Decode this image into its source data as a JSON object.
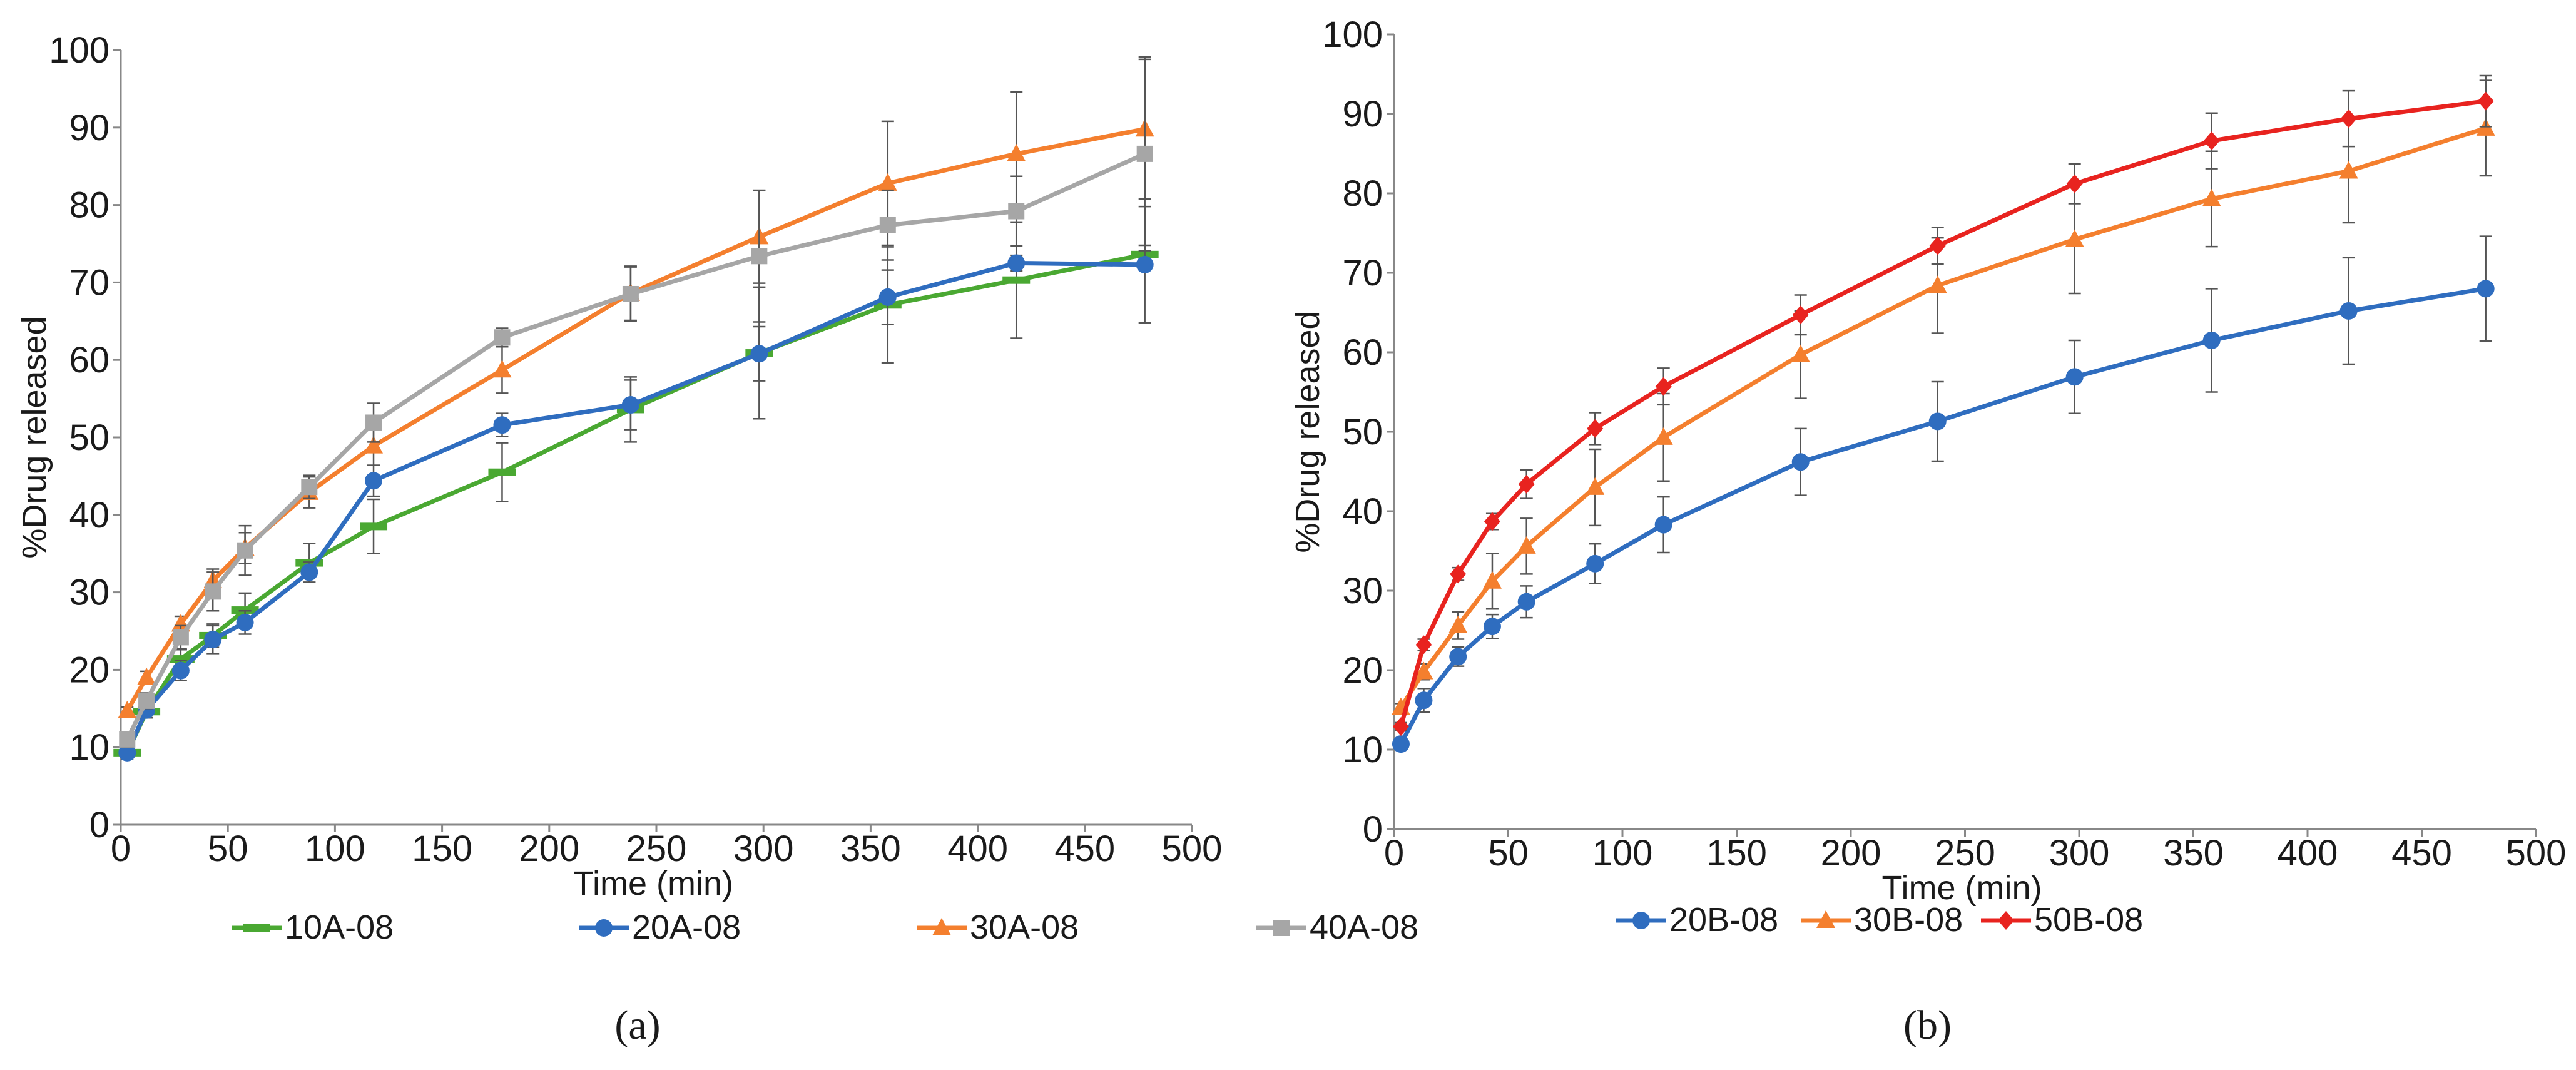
{
  "chart_data": [
    {
      "type": "line",
      "panel_label": "(a)",
      "xlabel": "Time (min)",
      "ylabel": "%Drug released",
      "xlim": [
        0,
        500
      ],
      "ylim": [
        0,
        100
      ],
      "x_ticks": [
        "0",
        "50",
        "100",
        "150",
        "200",
        "250",
        "300",
        "350",
        "400",
        "450",
        "500"
      ],
      "y_ticks": [
        "0",
        "10",
        "20",
        "30",
        "40",
        "50",
        "60",
        "70",
        "80",
        "90",
        "100"
      ],
      "grid": false,
      "legend_position": "bottom",
      "x": [
        3,
        12,
        28,
        43,
        58,
        88,
        118,
        178,
        238,
        298,
        358,
        418,
        478
      ],
      "series": [
        {
          "name": "10A-08",
          "color": "#4aa832",
          "marker": "dash",
          "values": [
            9.3,
            14.6,
            21.4,
            24.4,
            27.7,
            33.8,
            38.5,
            45.5,
            53.6,
            60.9,
            67.1,
            70.3,
            73.6
          ],
          "errors": [
            0.6,
            0.8,
            1.2,
            1.5,
            2.2,
            2.5,
            3.5,
            3.8,
            4.2,
            8.5,
            7.5,
            7.5,
            1.2
          ]
        },
        {
          "name": "20A-08",
          "color": "#2f6dbf",
          "marker": "circle",
          "values": [
            9.3,
            14.8,
            19.9,
            23.9,
            26.1,
            32.6,
            44.4,
            51.6,
            54.2,
            60.8,
            68.1,
            72.5,
            72.3
          ],
          "errors": [
            0.8,
            1.0,
            1.3,
            1.8,
            1.5,
            1.3,
            2.0,
            1.5,
            3.2,
            3.5,
            3.5,
            1.0,
            7.5
          ]
        },
        {
          "name": "30A-08",
          "color": "#f47f2e",
          "marker": "triangle",
          "values": [
            14.7,
            19.0,
            25.9,
            31.5,
            35.7,
            42.9,
            48.9,
            58.7,
            68.6,
            75.9,
            82.8,
            86.6,
            89.8
          ],
          "errors": [
            0.5,
            0.8,
            1.0,
            1.5,
            2.0,
            2.0,
            2.5,
            3.0,
            3.5,
            6.0,
            8.0,
            8.0,
            9.0
          ]
        },
        {
          "name": "40A-08",
          "color": "#a6a6a6",
          "marker": "square",
          "values": [
            11.0,
            16.0,
            24.2,
            30.1,
            35.4,
            43.6,
            51.9,
            62.9,
            68.5,
            73.4,
            77.4,
            79.2,
            86.6
          ],
          "errors": [
            1.0,
            1.0,
            1.5,
            2.5,
            3.2,
            1.5,
            2.5,
            1.2,
            3.5,
            8.5,
            4.5,
            4.5,
            12.5
          ]
        }
      ]
    },
    {
      "type": "line",
      "panel_label": "(b)",
      "xlabel": "Time (min)",
      "ylabel": "%Drug released",
      "xlim": [
        0,
        500
      ],
      "ylim": [
        0,
        100
      ],
      "x_ticks": [
        "0",
        "50",
        "100",
        "150",
        "200",
        "250",
        "300",
        "350",
        "400",
        "450",
        "500"
      ],
      "y_ticks": [
        "0",
        "10",
        "20",
        "30",
        "40",
        "50",
        "60",
        "70",
        "80",
        "90",
        "100"
      ],
      "grid": false,
      "legend_position": "bottom",
      "x": [
        3,
        13,
        28,
        43,
        58,
        88,
        118,
        178,
        238,
        298,
        358,
        418,
        478
      ],
      "series": [
        {
          "name": "20B-08",
          "color": "#2f6dbf",
          "marker": "circle",
          "values": [
            10.7,
            16.2,
            21.7,
            25.5,
            28.6,
            33.4,
            38.3,
            46.2,
            51.3,
            56.9,
            61.5,
            65.2,
            68.0
          ],
          "errors": [
            0.5,
            1.5,
            1.2,
            1.5,
            2.0,
            2.5,
            3.5,
            4.2,
            5.0,
            4.6,
            6.5,
            6.7,
            6.6
          ]
        },
        {
          "name": "30B-08",
          "color": "#f47f2e",
          "marker": "triangle",
          "values": [
            15.3,
            19.8,
            25.6,
            31.2,
            35.6,
            43.0,
            49.3,
            59.7,
            68.4,
            74.2,
            79.3,
            82.8,
            88.2
          ],
          "errors": [
            0.5,
            1.0,
            1.7,
            3.5,
            3.5,
            4.8,
            5.5,
            5.5,
            6.0,
            6.8,
            6.0,
            6.5,
            6.0
          ]
        },
        {
          "name": "50B-08",
          "color": "#e8231f",
          "marker": "diamond",
          "values": [
            12.9,
            23.2,
            32.1,
            38.7,
            43.4,
            50.4,
            55.7,
            64.7,
            73.4,
            81.2,
            86.6,
            89.4,
            91.6
          ],
          "errors": [
            0.5,
            0.7,
            0.8,
            1.0,
            1.8,
            2.0,
            2.3,
            2.5,
            2.3,
            2.5,
            3.5,
            3.5,
            3.2
          ]
        }
      ]
    }
  ]
}
